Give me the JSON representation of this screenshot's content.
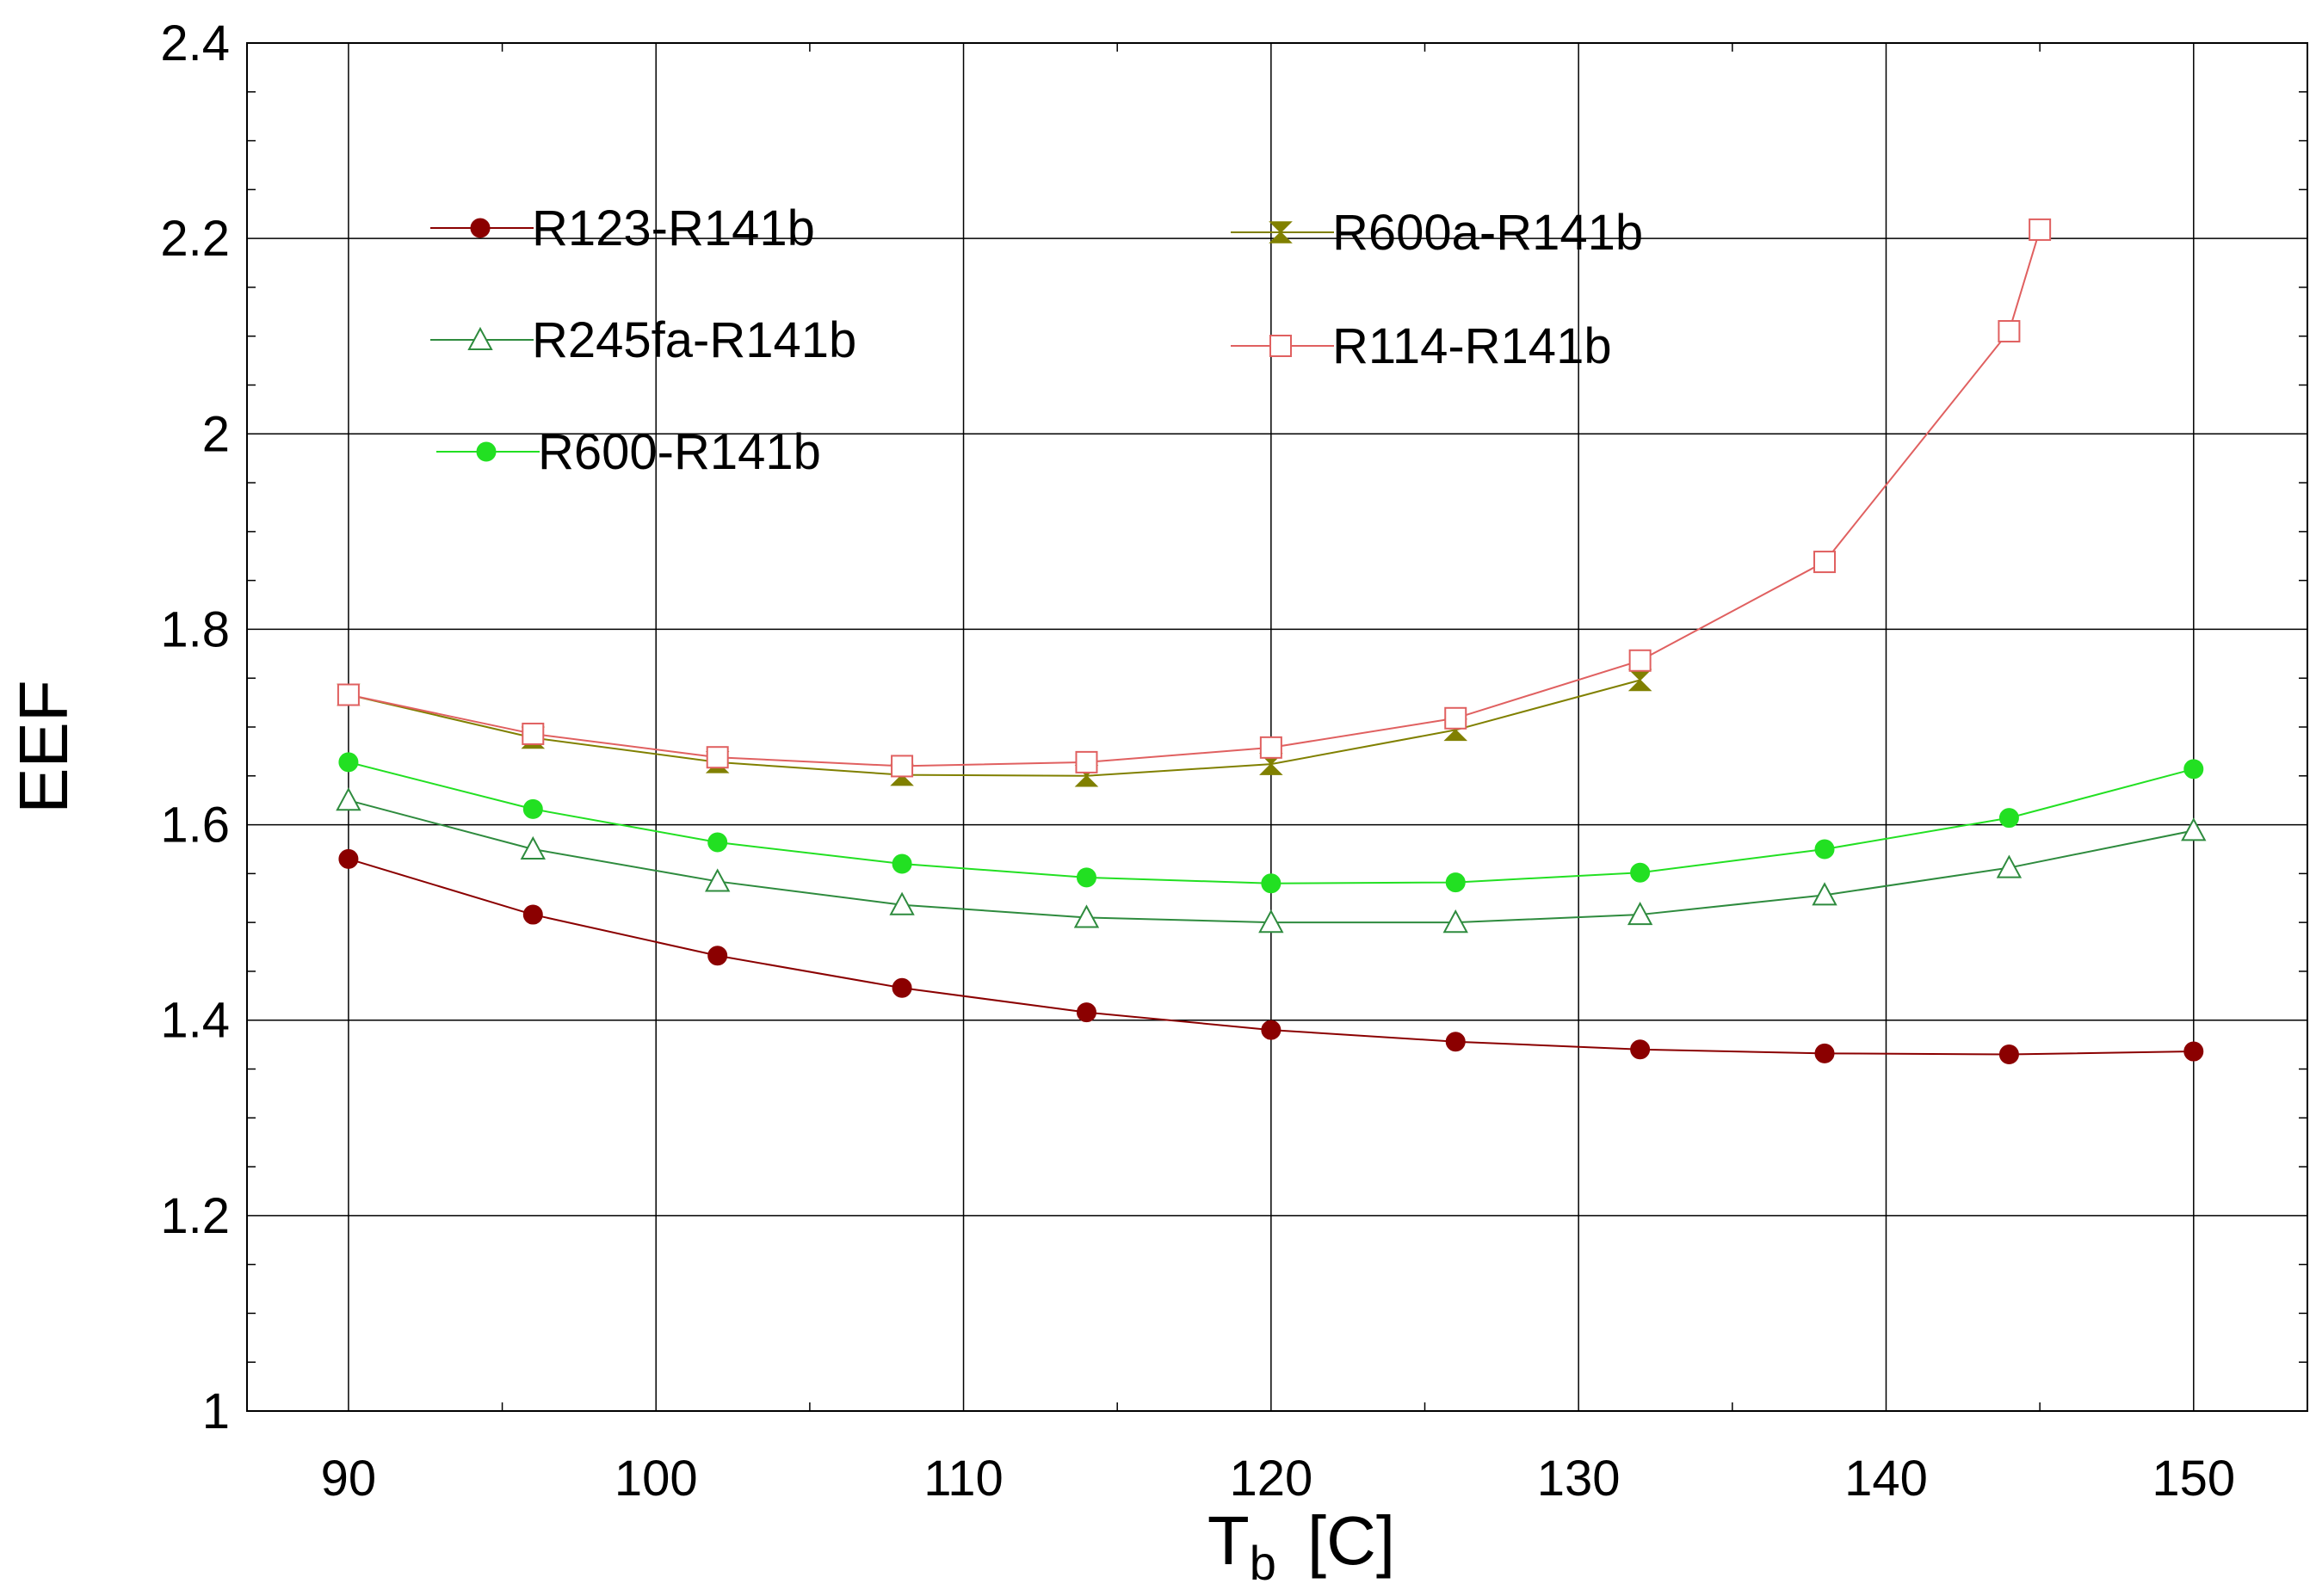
{
  "chart_data": {
    "type": "line",
    "title": "",
    "xlabel": {
      "main": "T",
      "sub": "b",
      "unit": "[C]"
    },
    "ylabel": "EEF",
    "xlim": [
      86.7,
      153.7
    ],
    "ylim": [
      1,
      2.4
    ],
    "xticks": [
      90,
      100,
      110,
      120,
      130,
      140,
      150
    ],
    "yticks": [
      1,
      1.2,
      1.4,
      1.6,
      1.8,
      2,
      2.2,
      2.4
    ],
    "ytick_labels": [
      "1",
      "1.2",
      "1.4",
      "1.6",
      "1.8",
      "2",
      "2.2",
      "2.4"
    ],
    "grid": true,
    "legend_position": "upper-left, two columns",
    "series": [
      {
        "name": "R123-R141b",
        "color": "#8b0000",
        "marker": "filled-circle",
        "x": [
          90,
          96,
          102,
          108,
          114,
          120,
          126,
          132,
          138,
          144,
          150
        ],
        "y": [
          1.565,
          1.508,
          1.466,
          1.433,
          1.408,
          1.39,
          1.378,
          1.37,
          1.366,
          1.365,
          1.368
        ]
      },
      {
        "name": "R245fa-R141b",
        "color": "#2e8b3e",
        "marker": "open-triangle",
        "x": [
          90,
          96,
          102,
          108,
          114,
          120,
          126,
          132,
          138,
          144,
          150
        ],
        "y": [
          1.625,
          1.575,
          1.542,
          1.518,
          1.505,
          1.5,
          1.5,
          1.508,
          1.528,
          1.556,
          1.594
        ]
      },
      {
        "name": "R600-R141b",
        "color": "#22e022",
        "marker": "filled-circle",
        "x": [
          90,
          96,
          102,
          108,
          114,
          120,
          126,
          132,
          138,
          144,
          150
        ],
        "y": [
          1.664,
          1.616,
          1.582,
          1.56,
          1.546,
          1.54,
          1.541,
          1.551,
          1.575,
          1.607,
          1.657
        ]
      },
      {
        "name": "R600a-R141b",
        "color": "#808000",
        "marker": "hourglass",
        "x": [
          90,
          96,
          102,
          108,
          114,
          120,
          126,
          132
        ],
        "y": [
          1.733,
          1.689,
          1.664,
          1.651,
          1.65,
          1.662,
          1.697,
          1.748
        ]
      },
      {
        "name": "R114-R141b",
        "color": "#e06060",
        "marker": "open-square",
        "x": [
          90,
          96,
          102,
          108,
          114,
          120,
          126,
          132,
          138,
          144,
          145
        ],
        "y": [
          1.733,
          1.693,
          1.669,
          1.66,
          1.664,
          1.679,
          1.709,
          1.768,
          1.869,
          2.105,
          2.209
        ]
      }
    ]
  }
}
